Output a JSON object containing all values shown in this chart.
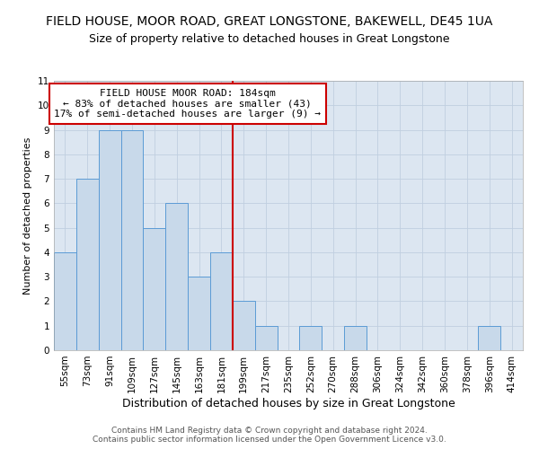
{
  "title": "FIELD HOUSE, MOOR ROAD, GREAT LONGSTONE, BAKEWELL, DE45 1UA",
  "subtitle": "Size of property relative to detached houses in Great Longstone",
  "xlabel": "Distribution of detached houses by size in Great Longstone",
  "ylabel": "Number of detached properties",
  "bin_labels": [
    "55sqm",
    "73sqm",
    "91sqm",
    "109sqm",
    "127sqm",
    "145sqm",
    "163sqm",
    "181sqm",
    "199sqm",
    "217sqm",
    "235sqm",
    "252sqm",
    "270sqm",
    "288sqm",
    "306sqm",
    "324sqm",
    "342sqm",
    "360sqm",
    "378sqm",
    "396sqm",
    "414sqm"
  ],
  "bar_heights": [
    4,
    7,
    9,
    9,
    5,
    6,
    3,
    4,
    2,
    1,
    0,
    1,
    0,
    1,
    0,
    0,
    0,
    0,
    0,
    1,
    0
  ],
  "bar_color": "#c8d9ea",
  "bar_edge_color": "#5b9bd5",
  "bar_width": 1.0,
  "vline_x_index": 7,
  "vline_color": "#cc0000",
  "ylim": [
    0,
    11
  ],
  "yticks": [
    0,
    1,
    2,
    3,
    4,
    5,
    6,
    7,
    8,
    9,
    10,
    11
  ],
  "annotation_title": "FIELD HOUSE MOOR ROAD: 184sqm",
  "annotation_line1": "← 83% of detached houses are smaller (43)",
  "annotation_line2": "17% of semi-detached houses are larger (9) →",
  "annotation_box_color": "#cc0000",
  "annotation_text_color": "#000000",
  "annotation_bg_color": "#ffffff",
  "grid_color": "#c0cfe0",
  "background_color": "#ffffff",
  "plot_bg_color": "#dce6f1",
  "footer_line1": "Contains HM Land Registry data © Crown copyright and database right 2024.",
  "footer_line2": "Contains public sector information licensed under the Open Government Licence v3.0.",
  "title_fontsize": 10,
  "subtitle_fontsize": 9,
  "xlabel_fontsize": 9,
  "ylabel_fontsize": 8,
  "tick_fontsize": 7.5,
  "annotation_fontsize": 8,
  "footer_fontsize": 6.5
}
